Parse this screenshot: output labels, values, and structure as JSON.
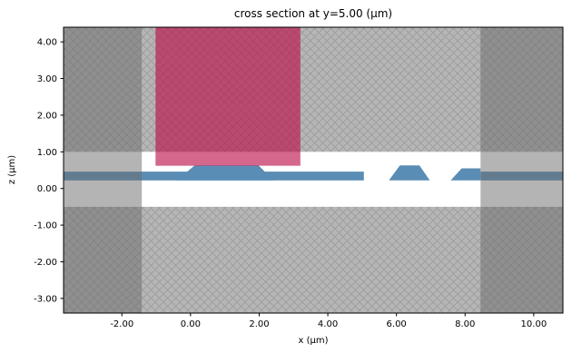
{
  "chart_data": {
    "type": "cross_section",
    "title": "cross section at y=5.00 (μm)",
    "xlabel": "x (μm)",
    "ylabel": "z (μm)",
    "xlim": [
      -3.7,
      10.85
    ],
    "zlim": [
      -3.4,
      4.4
    ],
    "xticks": [
      -2.0,
      0.0,
      2.0,
      4.0,
      6.0,
      8.0,
      10.0
    ],
    "zticks": [
      4.0,
      3.0,
      2.0,
      1.0,
      0.0,
      -1.0,
      -2.0,
      -3.0
    ],
    "tick_decimals": 2,
    "grid": false,
    "legend": "none",
    "colors": {
      "figure_background": "#ffffff",
      "background_gray": "#b6b6b6",
      "hatch_line": "#9f9f9f",
      "air_region": "#ffffff",
      "structure_blue": "#5a8db5",
      "pink_overlay": "rgba(187,10,70,0.62)",
      "boundary_overlay": "rgba(105,105,105,0.5)",
      "axis_color": "#000000"
    },
    "regions": {
      "air_band": {
        "x": [
          -3.7,
          10.85
        ],
        "z": [
          -0.5,
          1.0
        ]
      },
      "slab_z": [
        0.22,
        0.46
      ],
      "slab_segments": [
        {
          "x": [
            -3.7,
            5.05
          ]
        },
        {
          "x": [
            8.45,
            10.85
          ]
        }
      ],
      "ridges": [
        {
          "base_x": [
            -0.4,
            2.42
          ],
          "top_x": [
            0.12,
            1.98
          ],
          "z": [
            0.22,
            0.63
          ]
        },
        {
          "base_x": [
            5.78,
            6.97
          ],
          "top_x": [
            6.1,
            6.67
          ],
          "z": [
            0.22,
            0.63
          ]
        },
        {
          "base_x": [
            7.58,
            8.45
          ],
          "top_x": [
            7.9,
            8.45
          ],
          "z": [
            0.22,
            0.55
          ]
        }
      ],
      "pink_overlay_rect": {
        "x": [
          -1.02,
          3.2
        ],
        "z": [
          0.62,
          4.4
        ]
      },
      "boundary_bands_x": [
        {
          "x": [
            -3.7,
            -1.42
          ]
        },
        {
          "x": [
            8.45,
            10.85
          ]
        }
      ]
    }
  }
}
